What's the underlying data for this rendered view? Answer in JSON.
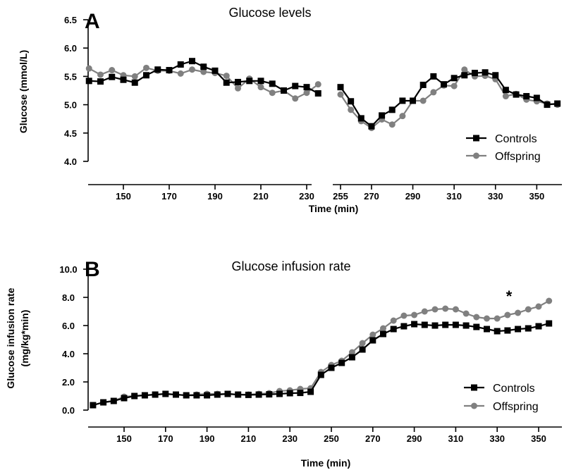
{
  "chart_data": [
    {
      "panel": "A",
      "type": "line",
      "title": "Glucose levels",
      "xlabel": "Time (min)",
      "ylabel": "Glucose (mmol/L)",
      "ylim": [
        4.0,
        6.5
      ],
      "yticks": [
        "4.0",
        "4.5",
        "5.0",
        "5.5",
        "6.0",
        "6.5"
      ],
      "xticks": [
        "150",
        "170",
        "190",
        "210",
        "230",
        "255",
        "270",
        "290",
        "310",
        "330",
        "350"
      ],
      "x_axis_break": "between 240 and 250 (plotted as a gap)",
      "grid": false,
      "legend_position": "bottom-right",
      "series": [
        {
          "name": "Controls",
          "color": "#000000",
          "marker": "square",
          "segments": [
            {
              "x": [
                135,
                140,
                145,
                150,
                155,
                160,
                165,
                170,
                175,
                180,
                185,
                190,
                195,
                200,
                205,
                210,
                215,
                220,
                225,
                230,
                235
              ],
              "y": [
                5.42,
                5.41,
                5.49,
                5.44,
                5.39,
                5.52,
                5.62,
                5.61,
                5.71,
                5.77,
                5.67,
                5.6,
                5.39,
                5.4,
                5.42,
                5.42,
                5.37,
                5.25,
                5.33,
                5.31,
                5.2
              ]
            },
            {
              "x": [
                255,
                260,
                265,
                270,
                275,
                280,
                285,
                290,
                295,
                300,
                305,
                310,
                315,
                320,
                325,
                330,
                335,
                340,
                345,
                350,
                355,
                360
              ],
              "y": [
                5.31,
                5.06,
                4.76,
                4.62,
                4.81,
                4.91,
                5.07,
                5.07,
                5.35,
                5.5,
                5.36,
                5.47,
                5.52,
                5.56,
                5.57,
                5.52,
                5.26,
                5.18,
                5.15,
                5.12,
                5.0,
                5.02
              ]
            }
          ]
        },
        {
          "name": "Offspring",
          "color": "#808080",
          "marker": "circle",
          "segments": [
            {
              "x": [
                135,
                140,
                145,
                150,
                155,
                160,
                165,
                170,
                175,
                180,
                185,
                190,
                195,
                200,
                205,
                210,
                215,
                220,
                225,
                230,
                235
              ],
              "y": [
                5.64,
                5.53,
                5.61,
                5.52,
                5.5,
                5.65,
                5.6,
                5.6,
                5.55,
                5.62,
                5.58,
                5.56,
                5.51,
                5.29,
                5.46,
                5.31,
                5.21,
                5.25,
                5.11,
                5.21,
                5.36
              ]
            },
            {
              "x": [
                255,
                260,
                265,
                270,
                275,
                280,
                285,
                290,
                295,
                300,
                305,
                310,
                315,
                320,
                325,
                330,
                335,
                340,
                345,
                350,
                355,
                360
              ],
              "y": [
                5.18,
                4.91,
                4.71,
                4.59,
                4.74,
                4.65,
                4.8,
                5.07,
                5.07,
                5.22,
                5.34,
                5.33,
                5.62,
                5.5,
                5.51,
                5.45,
                5.15,
                5.19,
                5.09,
                5.06,
                5.02,
                5.0
              ]
            }
          ]
        }
      ]
    },
    {
      "panel": "B",
      "type": "line",
      "title": "Glucose infusion rate",
      "xlabel": "Time (min)",
      "ylabel": "Glucose infusion rate",
      "ylabel_line2": "(mg/kg*min)",
      "ylim": [
        0.0,
        10.0
      ],
      "yticks": [
        "0.0",
        "2.0",
        "4.0",
        "6.0",
        "8.0",
        "10.0"
      ],
      "xticks": [
        "150",
        "170",
        "190",
        "210",
        "230",
        "250",
        "270",
        "290",
        "310",
        "330",
        "350"
      ],
      "grid": false,
      "legend_position": "bottom-right",
      "annotation": "*",
      "series": [
        {
          "name": "Controls",
          "color": "#000000",
          "marker": "square",
          "x": [
            135,
            140,
            145,
            150,
            155,
            160,
            165,
            170,
            175,
            180,
            185,
            190,
            195,
            200,
            205,
            210,
            215,
            220,
            225,
            230,
            235,
            240,
            245,
            250,
            255,
            260,
            265,
            270,
            275,
            280,
            285,
            290,
            295,
            300,
            305,
            310,
            315,
            320,
            325,
            330,
            335,
            340,
            345,
            350,
            355
          ],
          "y": [
            0.35,
            0.55,
            0.65,
            0.85,
            1.0,
            1.05,
            1.1,
            1.15,
            1.1,
            1.05,
            1.05,
            1.05,
            1.1,
            1.15,
            1.1,
            1.08,
            1.1,
            1.12,
            1.15,
            1.2,
            1.22,
            1.3,
            2.5,
            3.0,
            3.35,
            3.75,
            4.3,
            4.95,
            5.4,
            5.75,
            5.95,
            6.1,
            6.05,
            6.0,
            6.05,
            6.05,
            6.0,
            5.9,
            5.75,
            5.6,
            5.65,
            5.75,
            5.8,
            5.95,
            6.15
          ]
        },
        {
          "name": "Offspring",
          "color": "#808080",
          "marker": "circle",
          "x": [
            135,
            140,
            145,
            150,
            155,
            160,
            165,
            170,
            175,
            180,
            185,
            190,
            195,
            200,
            205,
            210,
            215,
            220,
            225,
            230,
            235,
            240,
            245,
            250,
            255,
            260,
            265,
            270,
            275,
            280,
            285,
            290,
            295,
            300,
            305,
            310,
            315,
            320,
            325,
            330,
            335,
            340,
            345,
            350,
            355
          ],
          "y": [
            0.35,
            0.55,
            0.65,
            0.95,
            1.0,
            1.05,
            1.1,
            1.15,
            1.1,
            1.05,
            1.1,
            1.15,
            1.15,
            1.15,
            1.1,
            1.1,
            1.15,
            1.2,
            1.35,
            1.4,
            1.5,
            1.55,
            2.7,
            3.2,
            3.5,
            4.1,
            4.75,
            5.35,
            5.8,
            6.35,
            6.7,
            6.75,
            7.0,
            7.15,
            7.2,
            7.15,
            6.85,
            6.6,
            6.5,
            6.5,
            6.75,
            6.9,
            7.15,
            7.35,
            7.75
          ]
        }
      ]
    }
  ]
}
